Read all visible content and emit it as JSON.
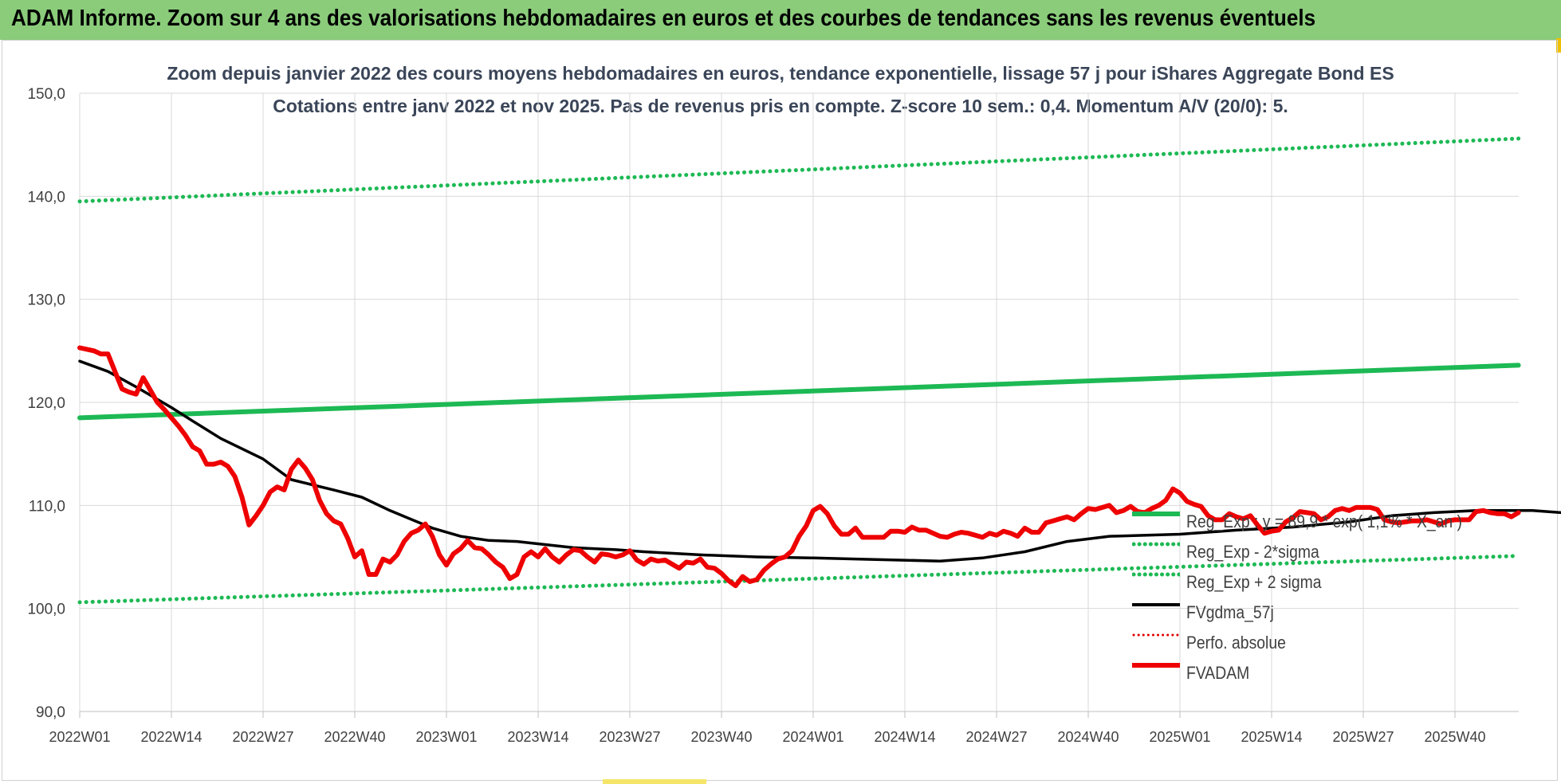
{
  "banner": {
    "title": "ADAM Informe. Zoom sur 4 ans des valorisations hebdomadaires en euros et des courbes de tendances sans les revenus éventuels"
  },
  "colors": {
    "banner_bg": "#8acc7a",
    "trend": "#1db954",
    "sigma": "#1db954",
    "fvgdma": "#000000",
    "perfo": "#e00000",
    "fvadam": "#ee0000",
    "grid": "#d9d9d9"
  },
  "chart_data": {
    "type": "line",
    "title": "Zoom depuis janvier 2022 des cours moyens hebdomadaires en euros, tendance exponentielle, lissage 57 j pour iShares Aggregate Bond ES",
    "subtitle": "Cotations entre janv 2022 et nov 2025. Pas de revenus pris en compte. Z-score 10 sem.: 0,4. Momentum A/V (20/0): 5.",
    "xlabel": "",
    "ylabel": "",
    "ylim": [
      90,
      150
    ],
    "yticks": [
      "150,0",
      "140,0",
      "130,0",
      "120,0",
      "110,0",
      "100,0",
      "90,0"
    ],
    "xticks": [
      "2022W01",
      "2022W14",
      "2022W27",
      "2022W40",
      "2023W01",
      "2023W14",
      "2023W27",
      "2023W40",
      "2024W01",
      "2024W14",
      "2024W27",
      "2024W40",
      "2025W01",
      "2025W14",
      "2025W27",
      "2025W40"
    ],
    "x_start_week_index": 0,
    "x_end_week_index": 204,
    "grid": true,
    "legend_position": "bottom-right",
    "series": [
      {
        "name": "Reg_Exp : y = 89,9 * exp( 1,1% * X_an )",
        "style": "solid-thick",
        "color": "#1db954",
        "points": [
          [
            0,
            118.5
          ],
          [
            204,
            123.6
          ]
        ]
      },
      {
        "name": "Reg_Exp - 2*sigma",
        "style": "dotted",
        "color": "#1db954",
        "points": [
          [
            0,
            100.6
          ],
          [
            204,
            105.1
          ]
        ]
      },
      {
        "name": "Reg_Exp + 2 sigma",
        "style": "dotted",
        "color": "#1db954",
        "points": [
          [
            0,
            139.5
          ],
          [
            204,
            145.6
          ]
        ]
      },
      {
        "name": "FVgdma_57j",
        "style": "solid",
        "color": "#000000",
        "points": [
          [
            0,
            124.0
          ],
          [
            4,
            123.0
          ],
          [
            8,
            121.5
          ],
          [
            13,
            119.5
          ],
          [
            16,
            118.2
          ],
          [
            20,
            116.5
          ],
          [
            26,
            114.5
          ],
          [
            30,
            112.5
          ],
          [
            33,
            112.0
          ],
          [
            36,
            111.5
          ],
          [
            40,
            110.8
          ],
          [
            44,
            109.5
          ],
          [
            50,
            107.8
          ],
          [
            54,
            107.0
          ],
          [
            58,
            106.6
          ],
          [
            62,
            106.5
          ],
          [
            66,
            106.2
          ],
          [
            70,
            105.9
          ],
          [
            76,
            105.7
          ],
          [
            80,
            105.5
          ],
          [
            88,
            105.2
          ],
          [
            96,
            105.0
          ],
          [
            104,
            104.9
          ],
          [
            110,
            104.8
          ],
          [
            122,
            104.6
          ],
          [
            128,
            104.9
          ],
          [
            134,
            105.5
          ],
          [
            140,
            106.5
          ],
          [
            146,
            107.0
          ],
          [
            156,
            107.2
          ],
          [
            164,
            107.6
          ],
          [
            172,
            107.9
          ],
          [
            180,
            108.4
          ],
          [
            186,
            109.0
          ],
          [
            192,
            109.3
          ],
          [
            198,
            109.5
          ],
          [
            206,
            109.5
          ],
          [
            212,
            109.2
          ],
          [
            222,
            109.0
          ],
          [
            232,
            109.0
          ],
          [
            244,
            109.0
          ],
          [
            252,
            109.1
          ],
          [
            258,
            109.0
          ],
          [
            266,
            109.0
          ],
          [
            268,
            109.1
          ],
          [
            272,
            109.0
          ],
          [
            276,
            109.0
          ],
          [
            280,
            109.0
          ]
        ]
      },
      {
        "name": "Perfo. absolue",
        "style": "dotted",
        "color": "#e00000",
        "points": []
      },
      {
        "name": "FVADAM",
        "style": "solid-thick",
        "color": "#ee0000",
        "points": [
          [
            0,
            125.3
          ],
          [
            2,
            125.0
          ],
          [
            3,
            124.7
          ],
          [
            4,
            124.7
          ],
          [
            5,
            123.0
          ],
          [
            6,
            121.3
          ],
          [
            7,
            121.0
          ],
          [
            8,
            120.8
          ],
          [
            9,
            122.4
          ],
          [
            10,
            121.2
          ],
          [
            11,
            120.0
          ],
          [
            12,
            119.3
          ],
          [
            13,
            118.5
          ],
          [
            14,
            117.7
          ],
          [
            15,
            116.8
          ],
          [
            16,
            115.7
          ],
          [
            17,
            115.3
          ],
          [
            18,
            114.0
          ],
          [
            19,
            114.0
          ],
          [
            20,
            114.2
          ],
          [
            21,
            113.8
          ],
          [
            22,
            112.8
          ],
          [
            23,
            110.8
          ],
          [
            24,
            108.1
          ],
          [
            25,
            109.0
          ],
          [
            26,
            110.0
          ],
          [
            27,
            111.3
          ],
          [
            28,
            111.8
          ],
          [
            29,
            111.5
          ],
          [
            30,
            113.5
          ],
          [
            31,
            114.4
          ],
          [
            32,
            113.6
          ],
          [
            33,
            112.5
          ],
          [
            34,
            110.5
          ],
          [
            35,
            109.2
          ],
          [
            36,
            108.5
          ],
          [
            37,
            108.2
          ],
          [
            38,
            106.8
          ],
          [
            39,
            105.0
          ],
          [
            40,
            105.6
          ],
          [
            41,
            103.3
          ],
          [
            42,
            103.3
          ],
          [
            43,
            104.8
          ],
          [
            44,
            104.5
          ],
          [
            45,
            105.2
          ],
          [
            46,
            106.5
          ],
          [
            47,
            107.3
          ],
          [
            48,
            107.6
          ],
          [
            49,
            108.2
          ],
          [
            50,
            107.0
          ],
          [
            51,
            105.2
          ],
          [
            52,
            104.2
          ],
          [
            53,
            105.3
          ],
          [
            54,
            105.8
          ],
          [
            55,
            106.6
          ],
          [
            56,
            105.9
          ],
          [
            57,
            105.8
          ],
          [
            58,
            105.2
          ],
          [
            59,
            104.5
          ],
          [
            60,
            104.0
          ],
          [
            61,
            102.9
          ],
          [
            62,
            103.3
          ],
          [
            63,
            105.0
          ],
          [
            64,
            105.5
          ],
          [
            65,
            105.0
          ],
          [
            66,
            105.8
          ],
          [
            67,
            105.0
          ],
          [
            68,
            104.5
          ],
          [
            69,
            105.2
          ],
          [
            70,
            105.7
          ],
          [
            71,
            105.6
          ],
          [
            72,
            105.0
          ],
          [
            73,
            104.5
          ],
          [
            74,
            105.3
          ],
          [
            75,
            105.2
          ],
          [
            76,
            105.0
          ],
          [
            77,
            105.2
          ],
          [
            78,
            105.6
          ],
          [
            79,
            104.7
          ],
          [
            80,
            104.3
          ],
          [
            81,
            104.8
          ],
          [
            82,
            104.6
          ],
          [
            83,
            104.7
          ],
          [
            84,
            104.3
          ],
          [
            85,
            103.9
          ],
          [
            86,
            104.5
          ],
          [
            87,
            104.4
          ],
          [
            88,
            104.8
          ],
          [
            89,
            104.0
          ],
          [
            90,
            103.9
          ],
          [
            91,
            103.4
          ],
          [
            92,
            102.7
          ],
          [
            93,
            102.2
          ],
          [
            94,
            103.1
          ],
          [
            95,
            102.6
          ],
          [
            96,
            102.8
          ],
          [
            97,
            103.7
          ],
          [
            98,
            104.3
          ],
          [
            99,
            104.8
          ],
          [
            100,
            105.0
          ],
          [
            101,
            105.6
          ],
          [
            102,
            107.0
          ],
          [
            103,
            108.0
          ],
          [
            104,
            109.5
          ],
          [
            105,
            109.9
          ],
          [
            106,
            109.2
          ],
          [
            107,
            108.0
          ],
          [
            108,
            107.2
          ],
          [
            109,
            107.2
          ],
          [
            110,
            107.8
          ],
          [
            111,
            106.9
          ],
          [
            112,
            106.9
          ],
          [
            113,
            106.9
          ],
          [
            114,
            106.9
          ],
          [
            115,
            107.5
          ],
          [
            116,
            107.5
          ],
          [
            117,
            107.4
          ],
          [
            118,
            107.9
          ],
          [
            119,
            107.6
          ],
          [
            120,
            107.6
          ],
          [
            121,
            107.3
          ],
          [
            122,
            107.0
          ],
          [
            123,
            106.9
          ],
          [
            124,
            107.2
          ],
          [
            125,
            107.4
          ],
          [
            126,
            107.3
          ],
          [
            127,
            107.1
          ],
          [
            128,
            106.9
          ],
          [
            129,
            107.3
          ],
          [
            130,
            107.1
          ],
          [
            131,
            107.5
          ],
          [
            132,
            107.3
          ],
          [
            133,
            107.0
          ],
          [
            134,
            107.8
          ],
          [
            135,
            107.4
          ],
          [
            136,
            107.4
          ],
          [
            137,
            108.3
          ],
          [
            138,
            108.5
          ],
          [
            139,
            108.7
          ],
          [
            140,
            108.9
          ],
          [
            141,
            108.6
          ],
          [
            142,
            109.2
          ],
          [
            143,
            109.7
          ],
          [
            144,
            109.6
          ],
          [
            145,
            109.8
          ],
          [
            146,
            110.0
          ],
          [
            147,
            109.3
          ],
          [
            148,
            109.5
          ],
          [
            149,
            109.9
          ],
          [
            150,
            109.4
          ],
          [
            151,
            109.3
          ],
          [
            152,
            109.7
          ],
          [
            153,
            110.0
          ],
          [
            154,
            110.5
          ],
          [
            155,
            111.6
          ],
          [
            156,
            111.2
          ],
          [
            157,
            110.4
          ],
          [
            158,
            110.1
          ],
          [
            159,
            109.9
          ],
          [
            160,
            109.0
          ],
          [
            161,
            108.6
          ],
          [
            162,
            108.6
          ],
          [
            163,
            109.2
          ],
          [
            164,
            108.9
          ],
          [
            165,
            108.7
          ],
          [
            166,
            109.0
          ],
          [
            167,
            108.1
          ],
          [
            168,
            107.3
          ],
          [
            169,
            107.5
          ],
          [
            170,
            107.6
          ],
          [
            171,
            108.4
          ],
          [
            172,
            108.8
          ],
          [
            173,
            109.4
          ],
          [
            174,
            109.3
          ],
          [
            175,
            109.2
          ],
          [
            176,
            108.6
          ],
          [
            177,
            108.9
          ],
          [
            178,
            109.5
          ],
          [
            179,
            109.7
          ],
          [
            180,
            109.5
          ],
          [
            181,
            109.8
          ],
          [
            182,
            109.8
          ],
          [
            183,
            109.8
          ],
          [
            184,
            109.6
          ],
          [
            185,
            108.6
          ],
          [
            186,
            108.4
          ],
          [
            187,
            108.3
          ],
          [
            188,
            108.4
          ],
          [
            189,
            108.5
          ],
          [
            190,
            108.5
          ],
          [
            191,
            108.6
          ],
          [
            192,
            108.4
          ],
          [
            193,
            108.2
          ],
          [
            194,
            108.5
          ],
          [
            195,
            108.6
          ],
          [
            196,
            108.6
          ],
          [
            197,
            108.6
          ],
          [
            198,
            109.4
          ],
          [
            199,
            109.5
          ],
          [
            200,
            109.3
          ],
          [
            201,
            109.2
          ],
          [
            202,
            109.2
          ],
          [
            203,
            108.9
          ],
          [
            204,
            109.3
          ]
        ]
      }
    ]
  },
  "legend": {
    "items": [
      {
        "label": "Reg_Exp : y = 89,9 * exp( 1,1% * X_an )"
      },
      {
        "label": "Reg_Exp - 2*sigma"
      },
      {
        "label": "Reg_Exp + 2 sigma"
      },
      {
        "label": "FVgdma_57j"
      },
      {
        "label": "Perfo. absolue"
      },
      {
        "label": "FVADAM"
      }
    ]
  }
}
